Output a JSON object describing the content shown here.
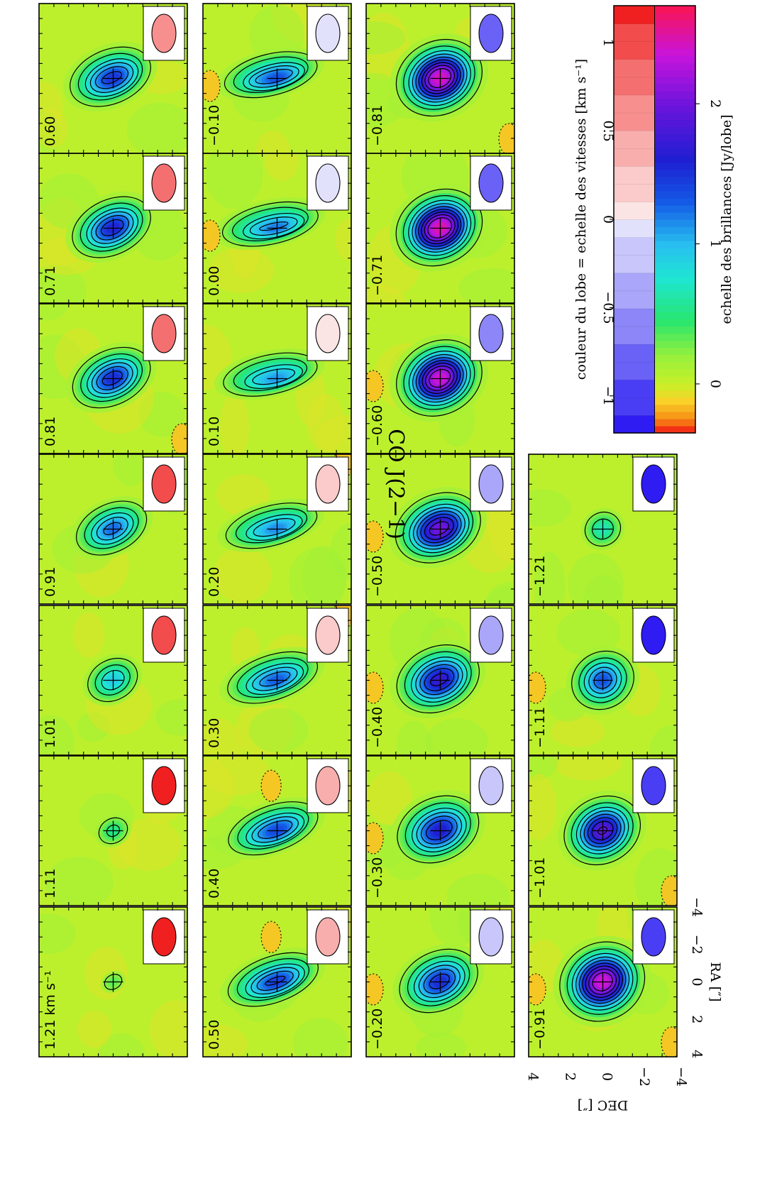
{
  "title": "CO  J(2−1)",
  "panels": [
    {
      "label": "1.21 km s⁻¹",
      "velocity": 1.21,
      "peak": 0.35,
      "major": 0.45,
      "minor": 0.35,
      "extra": 0.0,
      "negspots": []
    },
    {
      "label": "1.11",
      "velocity": 1.11,
      "peak": 0.55,
      "major": 0.55,
      "minor": 0.45,
      "extra": 0.0,
      "negspots": []
    },
    {
      "label": "1.01",
      "velocity": 1.01,
      "peak": 0.95,
      "major": 0.75,
      "minor": 0.6,
      "extra": 0.05,
      "negspots": []
    },
    {
      "label": "0.91",
      "velocity": 0.91,
      "peak": 1.3,
      "major": 0.95,
      "minor": 0.65,
      "extra": 0.15,
      "negspots": []
    },
    {
      "label": "0.81",
      "velocity": 0.81,
      "peak": 1.6,
      "major": 1.0,
      "minor": 0.7,
      "extra": 0.15,
      "negspots": [
        1
      ]
    },
    {
      "label": "0.71",
      "velocity": 0.71,
      "peak": 1.65,
      "major": 1.0,
      "minor": 0.7,
      "extra": 0.15,
      "negspots": []
    },
    {
      "label": "0.60",
      "velocity": 0.6,
      "peak": 1.55,
      "major": 1.0,
      "minor": 0.7,
      "extra": 0.25,
      "negspots": []
    },
    {
      "label": "0.50",
      "velocity": 0.5,
      "peak": 1.5,
      "major": 1.1,
      "minor": 0.6,
      "extra": 0.35,
      "negspots": [
        2
      ]
    },
    {
      "label": "0.40",
      "velocity": 0.4,
      "peak": 1.45,
      "major": 1.1,
      "minor": 0.6,
      "extra": 0.35,
      "negspots": [
        2
      ]
    },
    {
      "label": "0.30",
      "velocity": 0.3,
      "peak": 1.35,
      "major": 1.1,
      "minor": 0.6,
      "extra": 0.4,
      "negspots": [
        3
      ]
    },
    {
      "label": "0.20",
      "velocity": 0.2,
      "peak": 1.2,
      "major": 1.1,
      "minor": 0.55,
      "extra": 0.5,
      "negspots": [
        3
      ]
    },
    {
      "label": "0.10",
      "velocity": 0.1,
      "peak": 1.15,
      "major": 1.1,
      "minor": 0.55,
      "extra": 0.6,
      "negspots": []
    },
    {
      "label": "0.00",
      "velocity": 0.0,
      "peak": 1.25,
      "major": 1.1,
      "minor": 0.55,
      "extra": 0.6,
      "negspots": [
        4
      ]
    },
    {
      "label": "−0.10",
      "velocity": -0.1,
      "peak": 1.4,
      "major": 1.05,
      "minor": 0.55,
      "extra": 0.55,
      "negspots": [
        4
      ]
    },
    {
      "label": "−0.20",
      "velocity": -0.2,
      "peak": 1.6,
      "major": 1.0,
      "minor": 0.75,
      "extra": 0.15,
      "negspots": [
        4
      ]
    },
    {
      "label": "−0.30",
      "velocity": -0.3,
      "peak": 1.7,
      "major": 1.0,
      "minor": 0.8,
      "extra": 0.2,
      "negspots": [
        4
      ]
    },
    {
      "label": "−0.40",
      "velocity": -0.4,
      "peak": 1.8,
      "major": 1.0,
      "minor": 0.8,
      "extra": 0.2,
      "negspots": [
        4
      ]
    },
    {
      "label": "−0.50",
      "velocity": -0.5,
      "peak": 2.1,
      "major": 1.0,
      "minor": 0.8,
      "extra": 0.2,
      "negspots": [
        4
      ]
    },
    {
      "label": "−0.60",
      "velocity": -0.6,
      "peak": 2.5,
      "major": 1.0,
      "minor": 0.85,
      "extra": 0.1,
      "negspots": [
        4
      ]
    },
    {
      "label": "−0.71",
      "velocity": -0.71,
      "peak": 2.6,
      "major": 1.0,
      "minor": 0.85,
      "extra": 0.1,
      "negspots": []
    },
    {
      "label": "−0.81",
      "velocity": -0.81,
      "peak": 2.55,
      "major": 1.0,
      "minor": 0.85,
      "extra": 0.1,
      "negspots": [
        1
      ]
    },
    {
      "label": "−0.91",
      "velocity": -0.91,
      "peak": 2.5,
      "major": 1.0,
      "minor": 0.9,
      "extra": 0.05,
      "negspots": [
        4,
        1
      ]
    },
    {
      "label": "−1.01",
      "velocity": -1.01,
      "peak": 2.0,
      "major": 0.95,
      "minor": 0.8,
      "extra": 0.05,
      "negspots": [
        1
      ]
    },
    {
      "label": "−1.11",
      "velocity": -1.11,
      "peak": 1.4,
      "major": 0.85,
      "minor": 0.75,
      "extra": 0.0,
      "negspots": [
        4
      ]
    },
    {
      "label": "−1.21",
      "velocity": -1.21,
      "peak": 0.7,
      "major": 0.6,
      "minor": 0.55,
      "extra": 0.0,
      "negspots": []
    }
  ],
  "axes": {
    "xlabel": "RA [″]",
    "ylabel": "DEC [″]",
    "x_ticks": [
      "4",
      "2",
      "0",
      "−2",
      "−4"
    ],
    "y_ticks": [
      "4",
      "2",
      "0",
      "−2",
      "−4"
    ]
  },
  "colorbar": {
    "velocity_label": "couleur du lobe = echelle des vitesses [km s⁻¹]",
    "brightness_label": "echelle des brillances [Jy/lobe]",
    "velocity_ticks": [
      "−1",
      "−0.5",
      "0",
      "0.5",
      "1"
    ],
    "velocity_range": [
      -1.21,
      1.21
    ],
    "brightness_ticks": [
      "0",
      "1",
      "2"
    ],
    "brightness_range": [
      -0.35,
      2.7
    ],
    "beam_colors_neg": [
      "#2e1cf2",
      "#4a3ef5",
      "#6a61f6",
      "#8c86f8",
      "#aaa6fa",
      "#c8c6fb",
      "#e2e1fc"
    ],
    "beam_colors_pos": [
      "#fbe4e4",
      "#fbcaca",
      "#f9aeae",
      "#f78f8f",
      "#f47070",
      "#f24c4c",
      "#f02020"
    ]
  },
  "contour_levels": [
    0.2,
    0.45,
    0.7,
    0.95,
    1.2,
    1.45,
    1.7,
    1.95,
    2.2
  ]
}
